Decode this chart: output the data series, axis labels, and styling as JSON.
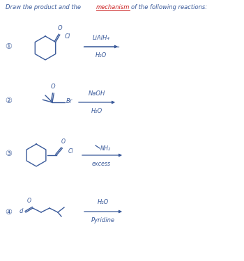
{
  "background_color": "#ffffff",
  "ink_color": "#3a5a9a",
  "underline_color": "#cc2222",
  "reactions": [
    {
      "reagent_above": "LiAlH₄",
      "reagent_below": "H₂O"
    },
    {
      "reagent_above": "NaOH",
      "reagent_below": "H₂O"
    },
    {
      "reagent_above": "—NH₂",
      "reagent_below": "excess"
    },
    {
      "reagent_above": "H₂O",
      "reagent_below": "Pyridine"
    }
  ]
}
